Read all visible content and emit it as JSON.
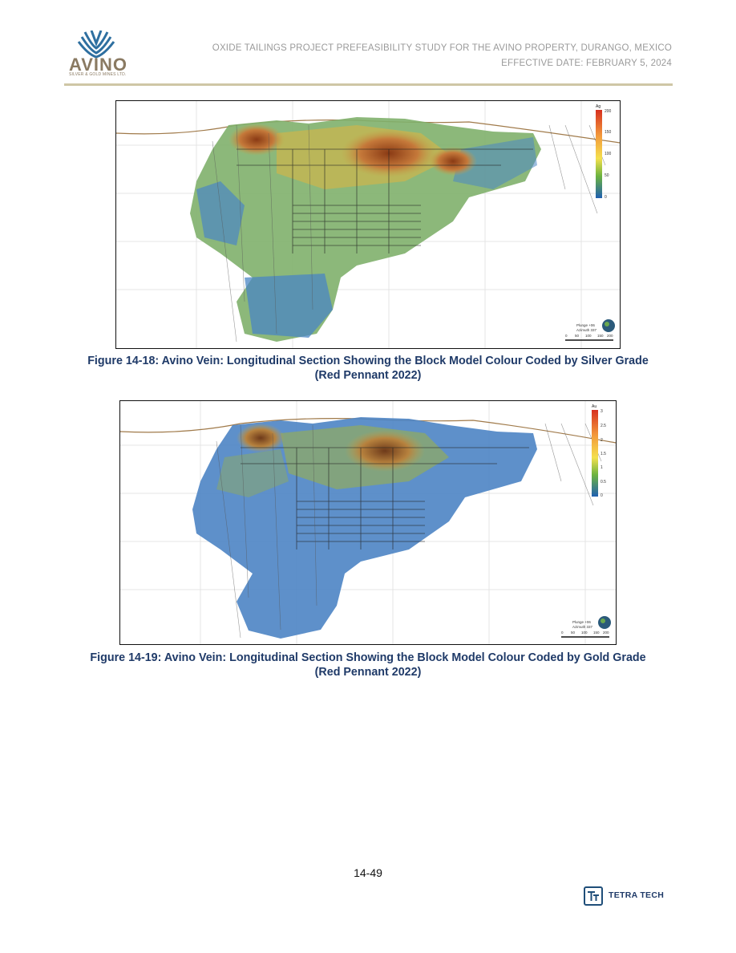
{
  "header": {
    "logo_text": "AVINO",
    "logo_subtext": "SILVER & GOLD MINES LTD.",
    "title_line1": "OXIDE TAILINGS PROJECT PREFEASIBILITY STUDY FOR THE AVINO PROPERTY, DURANGO, MEXICO",
    "title_line2": "EFFECTIVE DATE: FEBRUARY 5, 2024"
  },
  "figures": [
    {
      "caption_line1": "Figure 14-18: Avino Vein: Longitudinal Section Showing the Block Model Colour Coded by Silver Grade",
      "caption_line2": "(Red Pennant 2022)",
      "legend_title": "Ag",
      "legend_ticks": [
        "200",
        "150",
        "100",
        "50",
        "0"
      ],
      "orientation_line1": "Plunge +06",
      "orientation_line2": "Azimuth 337",
      "scale_ticks": [
        "0",
        "50",
        "100",
        "150",
        "200"
      ]
    },
    {
      "caption_line1": "Figure 14-19: Avino Vein: Longitudinal Section Showing the Block Model Colour Coded by Gold Grade",
      "caption_line2": "(Red Pennant 2022)",
      "legend_title": "Au",
      "legend_ticks": [
        "3",
        "2.5",
        "2",
        "1.5",
        "1",
        "0.5",
        "0"
      ],
      "orientation_line1": "Plunge +06",
      "orientation_line2": "Azimuth 337",
      "scale_ticks": [
        "0",
        "50",
        "100",
        "150",
        "200"
      ]
    }
  ],
  "footer": {
    "page_number": "14-49",
    "company": "TETRA TECH",
    "company_icon": "tt-logo"
  }
}
